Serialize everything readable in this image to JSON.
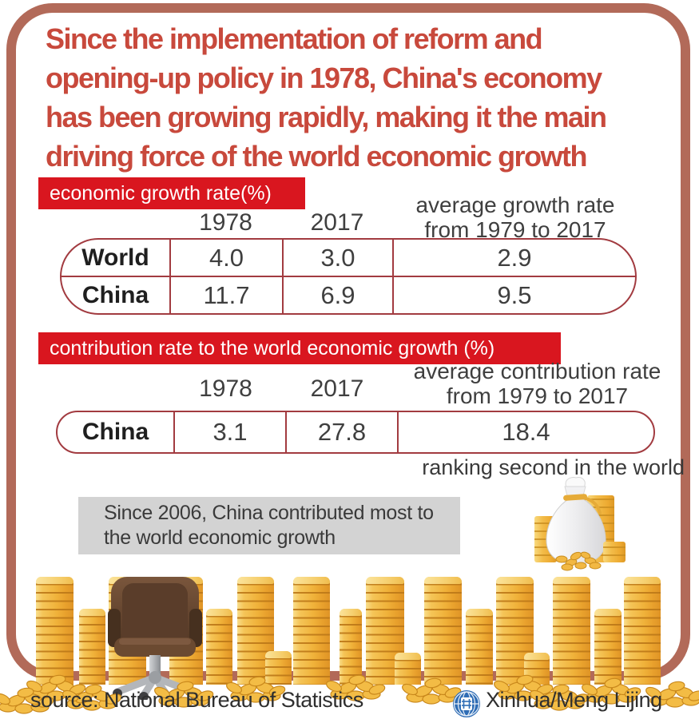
{
  "title": "Since the implementation of reform and\nopening-up policy in 1978, China's economy\nhas been growing rapidly, making it the main\ndriving force of the world economic growth",
  "growth_table": {
    "label": "economic growth rate(%)",
    "col_headers": [
      "1978",
      "2017",
      "average growth rate\nfrom 1979 to 2017"
    ],
    "rows": [
      {
        "label": "World",
        "values": [
          "4.0",
          "3.0",
          "2.9"
        ]
      },
      {
        "label": "China",
        "values": [
          "11.7",
          "6.9",
          "9.5"
        ]
      }
    ]
  },
  "contribution_table": {
    "label": "contribution rate to the world economic growth (%)",
    "col_headers": [
      "1978",
      "2017",
      "average contribution rate\nfrom 1979 to 2017"
    ],
    "rows": [
      {
        "label": "China",
        "values": [
          "3.1",
          "27.8",
          "18.4"
        ]
      }
    ],
    "note": "ranking second in the world"
  },
  "callout": {
    "text": "Since 2006, China contributed most to\nthe world economic growth"
  },
  "footer": {
    "source": "source: National Bureau of Statistics",
    "credit": "Xinhua/Meng Lijing"
  },
  "icons": {
    "money_bag": "money-bag-icon",
    "office_chair": "office-chair-icon",
    "coin_stack": "coin-stack-icon",
    "coin_pile": "coin-pile-icon",
    "xinhua_globe": "xinhua-globe-icon"
  },
  "colors": {
    "frame": "#b26a59",
    "title_red": "#c8493c",
    "label_bg": "#d9161f",
    "table_border": "#a23b40",
    "body_text": "#3f3f3f",
    "callout_bg": "#d3d3d3",
    "coin_gold": "#f0b23a",
    "chair_brown": "#5a3d2a",
    "xinhua_blue": "#2f6db5"
  },
  "chart_data": [
    {
      "type": "table",
      "title": "economic growth rate(%)",
      "columns": [
        "",
        "1978",
        "2017",
        "average growth rate from 1979 to 2017"
      ],
      "rows": [
        [
          "World",
          4.0,
          3.0,
          2.9
        ],
        [
          "China",
          11.7,
          6.9,
          9.5
        ]
      ]
    },
    {
      "type": "table",
      "title": "contribution rate to the world economic growth (%)",
      "columns": [
        "",
        "1978",
        "2017",
        "average contribution rate from 1979 to 2017"
      ],
      "rows": [
        [
          "China",
          3.1,
          27.8,
          18.4
        ]
      ],
      "annotation": "ranking second in the world"
    }
  ]
}
